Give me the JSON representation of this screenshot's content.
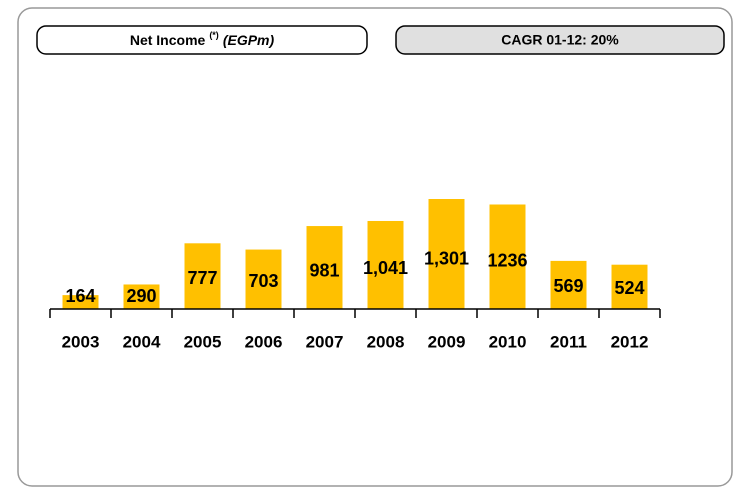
{
  "chart_data": {
    "type": "bar",
    "title": "Net Income",
    "title_superscript": "(*)",
    "title_unit": "(EGPm)",
    "annotation": "CAGR 01-12: 20%",
    "categories": [
      "2003",
      "2004",
      "2005",
      "2006",
      "2007",
      "2008",
      "2009",
      "2010",
      "2011",
      "2012"
    ],
    "values": [
      164,
      290,
      777,
      703,
      981,
      1041,
      1301,
      1236,
      569,
      524
    ],
    "value_labels": [
      "164",
      "290",
      "777",
      "703",
      "981",
      "1,041",
      "1,301",
      "1236",
      "569",
      "524"
    ],
    "color": "#ffc000"
  }
}
